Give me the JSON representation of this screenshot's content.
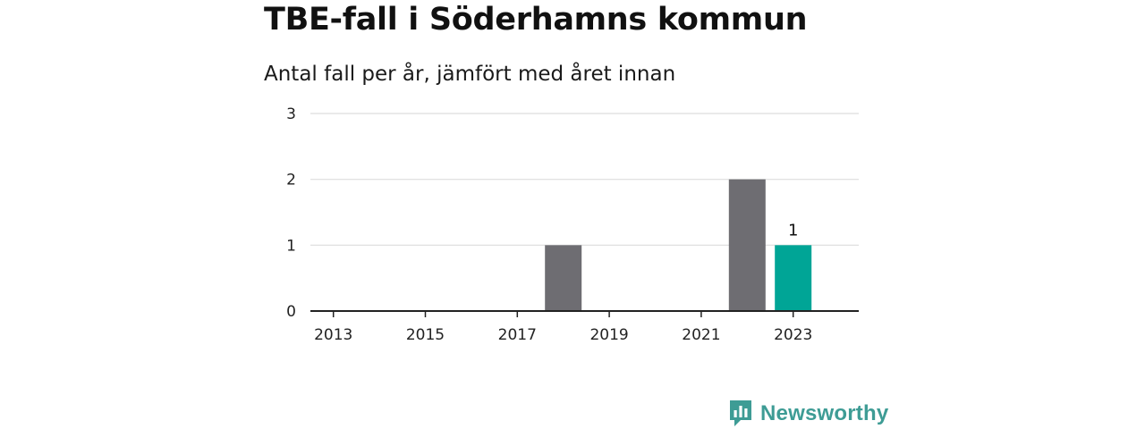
{
  "chart_data": {
    "type": "bar",
    "title": "TBE-fall i Söderhamns kommun",
    "subtitle": "Antal fall per år, jämfört med året innan",
    "xlabel": "",
    "ylabel": "",
    "ylim": [
      0,
      3
    ],
    "yticks": [
      "0",
      "1",
      "2",
      "3"
    ],
    "categories": [
      "2013",
      "2014",
      "2015",
      "2016",
      "2017",
      "2018",
      "2019",
      "2020",
      "2021",
      "2022",
      "2023"
    ],
    "xtick_labels": [
      "2013",
      "2015",
      "2017",
      "2019",
      "2021",
      "2023"
    ],
    "values": [
      0,
      0,
      0,
      0,
      0,
      1,
      0,
      0,
      0,
      2,
      1
    ],
    "highlight_index": 10,
    "data_labels": [
      {
        "category": "2023",
        "text": "1"
      }
    ],
    "grid": true,
    "legend": "none",
    "colors": {
      "bar": "#6e6d72",
      "highlight": "#00a596",
      "grid": "#dddddd",
      "axis": "#222222"
    }
  },
  "branding": {
    "name": "Newsworthy",
    "icon": "newsworthy-logo-icon",
    "color": "#3e9c95"
  }
}
